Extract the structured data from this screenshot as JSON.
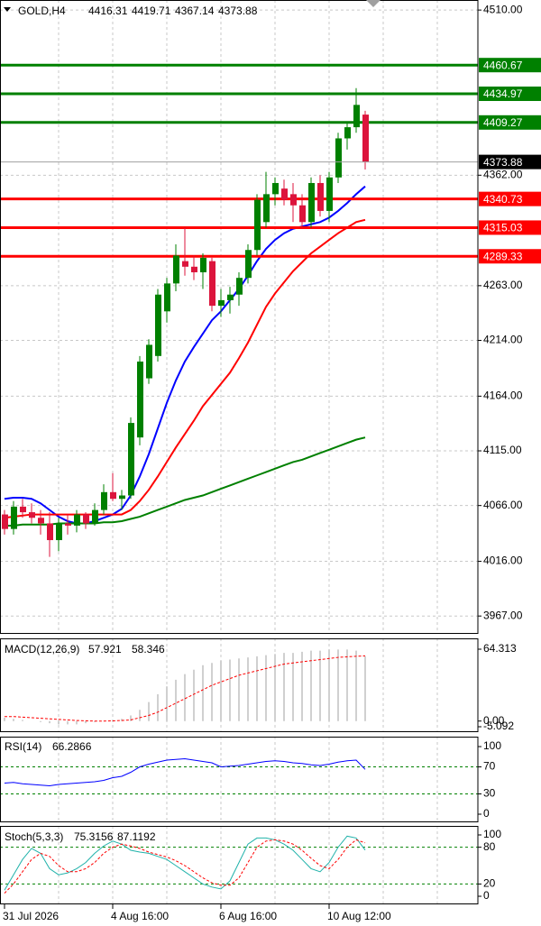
{
  "chart_data": [
    {
      "type": "candlestick",
      "title": "GOLD,H4",
      "categories": [
        "31 Jul 2026",
        null,
        null,
        null,
        null,
        null,
        null,
        null,
        null,
        null,
        null,
        null,
        "4 Aug 16:00",
        null,
        null,
        null,
        null,
        null,
        null,
        null,
        null,
        null,
        null,
        null,
        "6 Aug 16:00",
        null,
        null,
        null,
        null,
        null,
        null,
        null,
        null,
        null,
        null,
        null,
        "10 Aug 12:00",
        null,
        null,
        null,
        null
      ],
      "open": [
        4058,
        4045,
        4065,
        4060,
        4055,
        4050,
        4035,
        4050,
        4048,
        4058,
        4050,
        4062,
        4078,
        4072,
        4075,
        4127,
        4180,
        4200,
        4240,
        4265,
        4285,
        4280,
        4275,
        4285,
        4245,
        4250,
        4255,
        4270,
        4295,
        4320,
        4345,
        4350,
        4345,
        4335,
        4320,
        4355,
        4330,
        4360,
        4395,
        4405,
        4416.31
      ],
      "high": [
        4062,
        4070,
        4072,
        4068,
        4062,
        4060,
        4055,
        4058,
        4062,
        4060,
        4068,
        4085,
        4095,
        4080,
        4145,
        4200,
        4215,
        4260,
        4270,
        4300,
        4315,
        4290,
        4292,
        4288,
        4260,
        4262,
        4275,
        4300,
        4345,
        4365,
        4360,
        4358,
        4355,
        4345,
        4360,
        4362,
        4365,
        4400,
        4410,
        4440,
        4419.71
      ],
      "low": [
        4040,
        4040,
        4055,
        4050,
        4040,
        4020,
        4025,
        4040,
        4042,
        4045,
        4048,
        4058,
        4070,
        4062,
        4072,
        4120,
        4175,
        4195,
        4230,
        4258,
        4272,
        4268,
        4260,
        4240,
        4235,
        4238,
        4245,
        4265,
        4290,
        4315,
        4335,
        4335,
        4320,
        4315,
        4315,
        4325,
        4320,
        4355,
        4385,
        4400,
        4367.14
      ],
      "close": [
        4045,
        4065,
        4060,
        4055,
        4050,
        4035,
        4050,
        4048,
        4058,
        4050,
        4062,
        4078,
        4072,
        4075,
        4140,
        4195,
        4210,
        4255,
        4265,
        4290,
        4280,
        4275,
        4288,
        4245,
        4250,
        4255,
        4270,
        4295,
        4340,
        4345,
        4355,
        4340,
        4335,
        4320,
        4355,
        4330,
        4360,
        4395,
        4405,
        4425,
        4373.88
      ],
      "bull_color": "#008000",
      "bear_color": "#dc143c",
      "series": [
        {
          "color": "#0000ff",
          "values": [
            4072,
            4073,
            4073,
            4072,
            4068,
            4062,
            4056,
            4052,
            4050,
            4050,
            4052,
            4055,
            4058,
            4063,
            4075,
            4092,
            4112,
            4135,
            4158,
            4178,
            4195,
            4208,
            4220,
            4232,
            4240,
            4250,
            4260,
            4272,
            4285,
            4296,
            4304,
            4310,
            4314,
            4316,
            4318,
            4320,
            4324,
            4330,
            4337,
            4345,
            4352
          ]
        },
        {
          "color": "#ff0000",
          "values": [
            4055,
            4056,
            4057,
            4058,
            4058,
            4058,
            4058,
            4058,
            4058,
            4058,
            4058,
            4058,
            4058,
            4058,
            4062,
            4070,
            4080,
            4092,
            4105,
            4118,
            4130,
            4142,
            4155,
            4165,
            4175,
            4185,
            4198,
            4212,
            4228,
            4244,
            4256,
            4266,
            4276,
            4284,
            4292,
            4298,
            4304,
            4310,
            4315,
            4320,
            4322
          ]
        },
        {
          "color": "#008000",
          "values": [
            4048,
            4048,
            4049,
            4049,
            4049,
            4049,
            4050,
            4050,
            4050,
            4050,
            4050,
            4051,
            4051,
            4052,
            4054,
            4056,
            4059,
            4062,
            4065,
            4068,
            4071,
            4073,
            4075,
            4078,
            4081,
            4084,
            4087,
            4090,
            4093,
            4096,
            4099,
            4102,
            4105,
            4107,
            4110,
            4113,
            4116,
            4119,
            4122,
            4125,
            4127
          ]
        }
      ],
      "levels": [
        {
          "value": 4460.67,
          "color": "#008000"
        },
        {
          "value": 4434.97,
          "color": "#008000"
        },
        {
          "value": 4409.27,
          "color": "#008000"
        },
        {
          "value": 4340.73,
          "color": "#ff0000"
        },
        {
          "value": 4315.03,
          "color": "#ff0000"
        },
        {
          "value": 4289.33,
          "color": "#ff0000"
        }
      ],
      "ylim": [
        3951,
        4519
      ],
      "yticks": [
        {
          "value": 4510,
          "label": "4510.00"
        },
        {
          "value": 4362,
          "label": "4362.00"
        },
        {
          "value": 4263,
          "label": "4263.00"
        },
        {
          "value": 4214,
          "label": "4214.00"
        },
        {
          "value": 4164,
          "label": "4164.00"
        },
        {
          "value": 4115,
          "label": "4115.00"
        },
        {
          "value": 4066,
          "label": "4066.00"
        },
        {
          "value": 4016,
          "label": "4016.00"
        },
        {
          "value": 3967,
          "label": "3967.00"
        }
      ],
      "grid": "all"
    },
    {
      "type": "macd",
      "title": "MACD(12,26,9)",
      "series": [
        {
          "kind": "bar",
          "color": "#a0a0a0",
          "values": [
            3,
            2,
            1,
            0,
            -1,
            -2,
            -3,
            -3,
            -3,
            -2,
            -1,
            0,
            1,
            2,
            5,
            10,
            17,
            24,
            31,
            37,
            42,
            46,
            50,
            52,
            54,
            55,
            56,
            57,
            58,
            59,
            60,
            61,
            61,
            62,
            63,
            63,
            64,
            64,
            64,
            63,
            57.921
          ]
        },
        {
          "kind": "line",
          "dash": true,
          "color": "#ff0000",
          "values": [
            4,
            4,
            3.5,
            3,
            2.5,
            2,
            1.5,
            1,
            0.5,
            0.2,
            0,
            0,
            0.2,
            0.5,
            1,
            3,
            5,
            8,
            12,
            16,
            20,
            24,
            28,
            32,
            35,
            38,
            41,
            43,
            45,
            47,
            49,
            51,
            52,
            53,
            54,
            55,
            56,
            57,
            57.5,
            58,
            58.346
          ]
        }
      ],
      "ylim": [
        -9.93,
        74.0
      ],
      "yticks": [
        64.313,
        {
          "value": 0,
          "label": "0.00"
        },
        -5.092
      ],
      "grid": "none"
    },
    {
      "type": "line",
      "title": "RSI(14)",
      "series": [
        {
          "color": "#0000ff",
          "values": [
            46,
            47,
            45,
            44,
            43,
            42,
            44,
            45,
            46,
            47,
            48,
            50,
            54,
            56,
            62,
            70,
            74,
            77,
            80,
            81,
            82,
            80,
            78,
            76,
            70,
            71,
            72,
            74,
            76,
            78,
            79,
            78,
            76,
            75,
            73,
            72,
            74,
            77,
            79,
            80,
            66.2866
          ]
        }
      ],
      "ylim": [
        -12,
        114.7
      ],
      "yticks": [
        100,
        70,
        30,
        0
      ],
      "grid": "inner"
    },
    {
      "type": "line",
      "title": "Stoch(5,3,3)",
      "series": [
        {
          "color": "#20b2aa",
          "values": [
            10,
            35,
            60,
            78,
            70,
            45,
            35,
            38,
            45,
            55,
            70,
            82,
            90,
            85,
            75,
            72,
            70,
            65,
            60,
            50,
            40,
            30,
            20,
            15,
            12,
            25,
            55,
            85,
            95,
            95,
            92,
            85,
            75,
            60,
            45,
            40,
            55,
            80,
            98,
            95,
            75.3156
          ]
        },
        {
          "dash": true,
          "color": "#ff0000",
          "values": [
            5,
            20,
            40,
            60,
            70,
            65,
            50,
            40,
            40,
            45,
            55,
            70,
            80,
            85,
            82,
            78,
            72,
            68,
            64,
            58,
            50,
            40,
            30,
            22,
            18,
            18,
            30,
            55,
            80,
            90,
            92,
            90,
            85,
            75,
            62,
            50,
            45,
            60,
            80,
            92,
            87.1192
          ]
        }
      ],
      "ylim": [
        -13.2,
        114.7
      ],
      "yticks": [
        100,
        80,
        20,
        0
      ],
      "grid": "inner"
    }
  ]
}
